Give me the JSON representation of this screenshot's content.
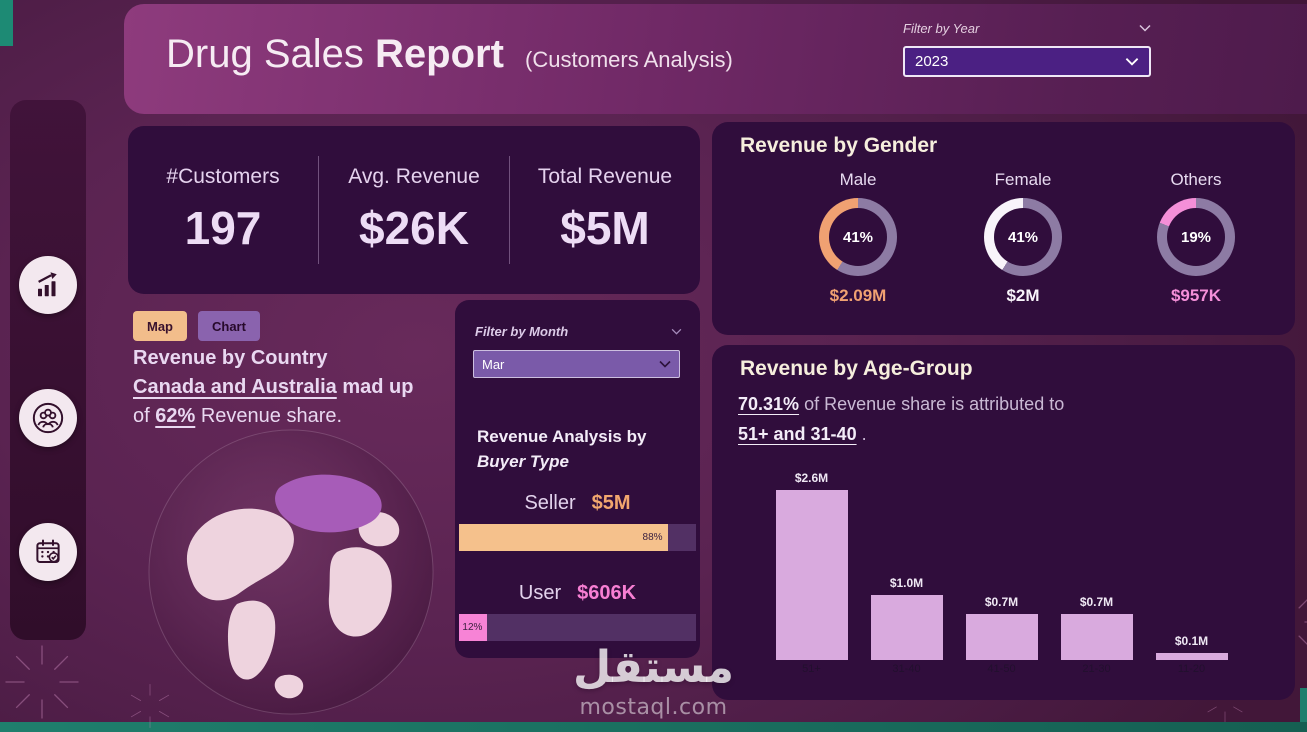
{
  "colors": {
    "orange": "#f2a76e",
    "pink": "#f77fd3",
    "white": "#f8f4fa",
    "lavender_bar": "#d9aade",
    "panel": "#300d3c",
    "teal": "#1f7f6d"
  },
  "header": {
    "title_regular": "Drug Sales",
    "title_bold": "Report",
    "subtitle": "(Customers Analysis)",
    "filter_year": {
      "label": "Filter by Year",
      "value": "2023"
    }
  },
  "sidebar": {
    "items": [
      {
        "icon": "trend-chart-icon"
      },
      {
        "icon": "customers-icon"
      },
      {
        "icon": "calendar-check-icon"
      }
    ]
  },
  "kpis": [
    {
      "label": "#Customers",
      "value": "197"
    },
    {
      "label": "Avg. Revenue",
      "value": "$26K"
    },
    {
      "label": "Total Revenue",
      "value": "$5M"
    }
  ],
  "gender_panel": {
    "title": "Revenue by Gender"
  },
  "country_panel": {
    "tab_map": "Map",
    "tab_chart": "Chart",
    "title": "Revenue by Country",
    "highlight": "Canada and Australia",
    "line2_rest": " mad up",
    "line3_prefix": "of ",
    "pct": "62%",
    "line3_rest": " Revenue share.",
    "map_highlight_color": "#a75cb8"
  },
  "buyer_panel": {
    "filter_month": {
      "label": "Filter by Month",
      "value": "Mar"
    },
    "title_line1": "Revenue Analysis by",
    "title_line2": "Buyer Type"
  },
  "age_panel": {
    "title": "Revenue by Age-Group",
    "pct": "70.31%",
    "mid": " of Revenue share is attributed to",
    "groups": "51+ and 31-40",
    "end": " ."
  },
  "watermark": {
    "arabic": "مستقل",
    "latin": "mostaql.com"
  },
  "chart_data": [
    {
      "type": "pie",
      "subtype": "donut",
      "title": "Revenue by Gender",
      "track_color": "#8d7ba4",
      "series": [
        {
          "label": "Male",
          "pct": 41,
          "pct_label": "41%",
          "amount": "$2.09M",
          "color": "#f0a172"
        },
        {
          "label": "Female",
          "pct": 41,
          "pct_label": "41%",
          "amount": "$2M",
          "color": "#f8f4fa"
        },
        {
          "label": "Others",
          "pct": 19,
          "pct_label": "19%",
          "amount": "$957K",
          "color": "#f48fd8"
        }
      ]
    },
    {
      "type": "bar",
      "orientation": "horizontal",
      "title": "Revenue Analysis by Buyer Type",
      "track_color": "#523064",
      "series": [
        {
          "label": "Seller",
          "amount": "$5M",
          "pct": 88,
          "pct_label": "88%",
          "color": "#f5c18c"
        },
        {
          "label": "User",
          "amount": "$606K",
          "pct": 12,
          "pct_label": "12%",
          "color": "#f783d6"
        }
      ]
    },
    {
      "type": "bar",
      "title": "Revenue by Age-Group",
      "categories": [
        "51+",
        "31-40",
        "41-50",
        "21-30",
        "11-20"
      ],
      "values": [
        2.6,
        1.0,
        0.7,
        0.7,
        0.1
      ],
      "labels": [
        "$2.6M",
        "$1.0M",
        "$0.7M",
        "$0.7M",
        "$0.1M"
      ],
      "ymax": 2.6,
      "bar_color": "#d9aade",
      "grid": false,
      "legend": false
    }
  ]
}
